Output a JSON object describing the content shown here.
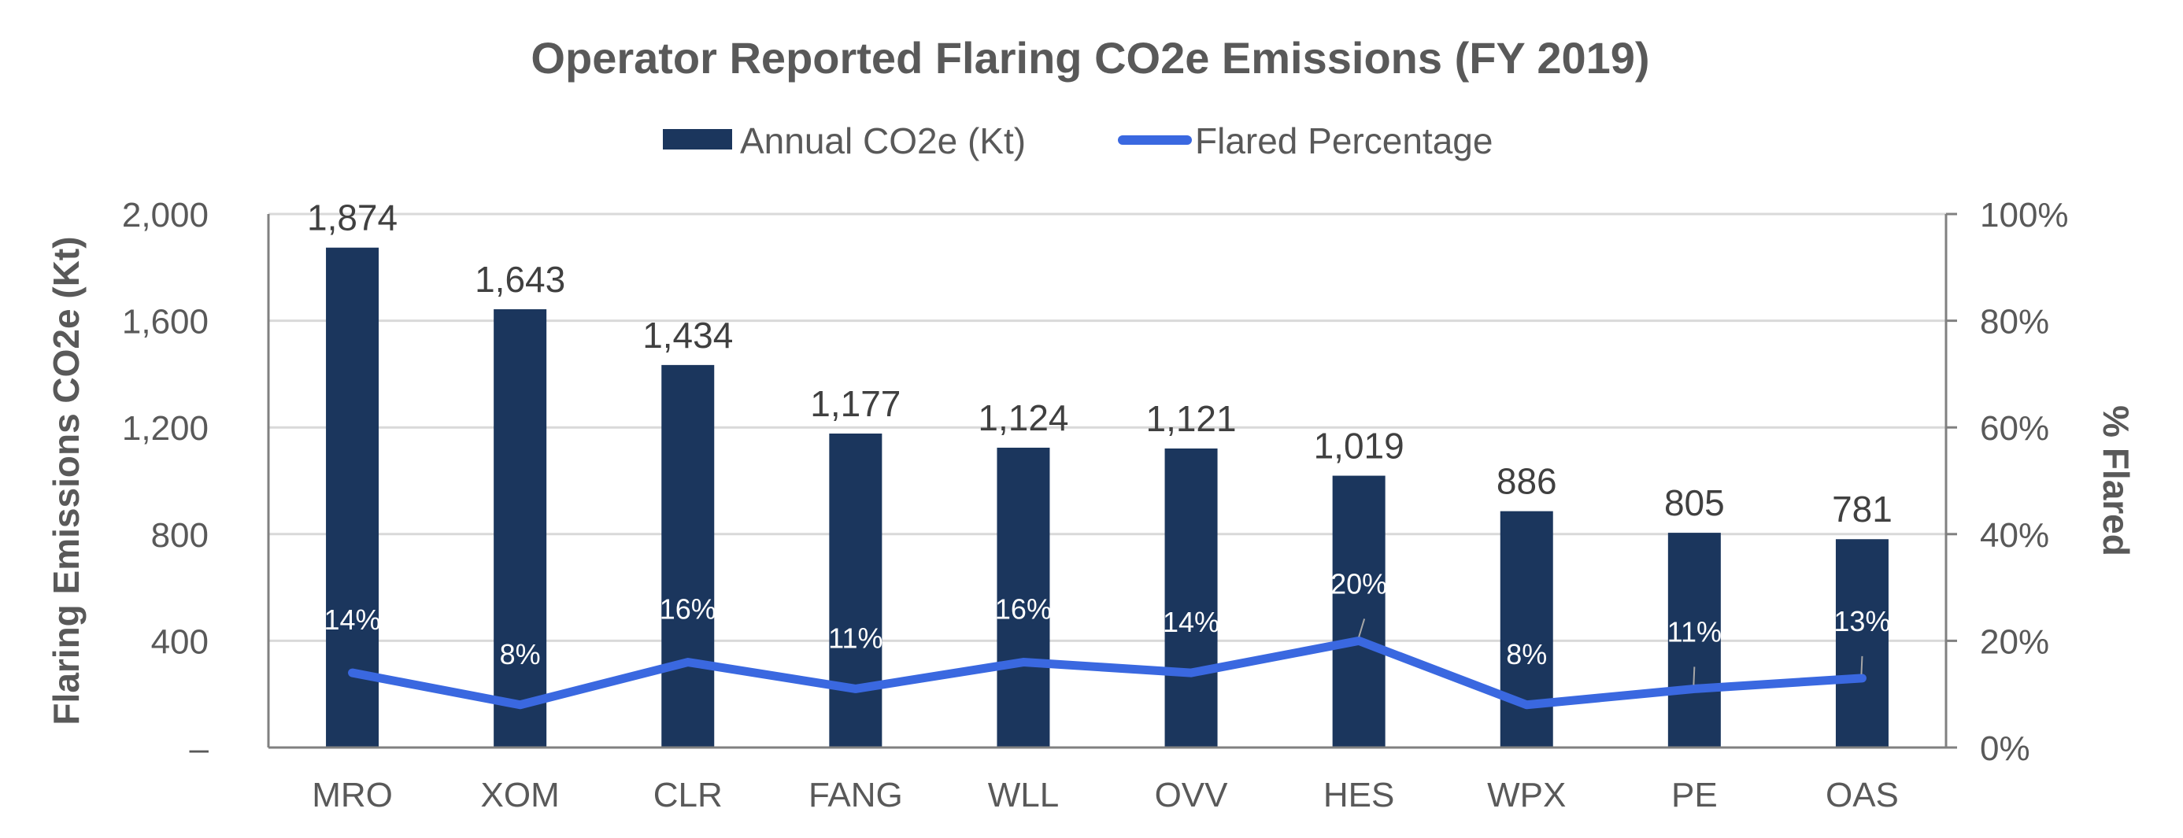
{
  "chart_data": {
    "type": "bar",
    "title": "Operator Reported Flaring CO2e Emissions (FY 2019)",
    "categories": [
      "MRO",
      "XOM",
      "CLR",
      "FANG",
      "WLL",
      "OVV",
      "HES",
      "WPX",
      "PE",
      "OAS"
    ],
    "series": [
      {
        "name": "Annual CO2e (Kt)",
        "type": "bar",
        "axis": "left",
        "color": "#1b365d",
        "values": [
          1874,
          1643,
          1434,
          1177,
          1124,
          1121,
          1019,
          886,
          805,
          781
        ],
        "labels": [
          "1,874",
          "1,643",
          "1,434",
          "1,177",
          "1,124",
          "1,121",
          "1,019",
          "886",
          "805",
          "781"
        ]
      },
      {
        "name": "Flared Percentage",
        "type": "line",
        "axis": "right",
        "color": "#3a68e0",
        "values": [
          14,
          8,
          16,
          11,
          16,
          14,
          20,
          8,
          11,
          13
        ],
        "labels": [
          "14%",
          "8%",
          "16%",
          "11%",
          "16%",
          "14%",
          "20%",
          "8%",
          "11%",
          "13%"
        ]
      }
    ],
    "ylabel": "Flaring Emissions CO2e (Kt)",
    "ylabel_right": "% Flared",
    "ylim": [
      0,
      2000
    ],
    "ylim_right": [
      0,
      100
    ],
    "yticks": [
      0,
      400,
      800,
      1200,
      1600,
      2000
    ],
    "ytick_labels": [
      "–",
      "400",
      "800",
      "1,200",
      "1,600",
      "2,000"
    ],
    "yticks_right": [
      0,
      20,
      40,
      60,
      80,
      100
    ],
    "ytick_labels_right": [
      "0%",
      "20%",
      "40%",
      "60%",
      "80%",
      "100%"
    ],
    "grid": true,
    "legend_position": "top-center",
    "legend": [
      "Annual CO2e (Kt)",
      "Flared Percentage"
    ]
  }
}
